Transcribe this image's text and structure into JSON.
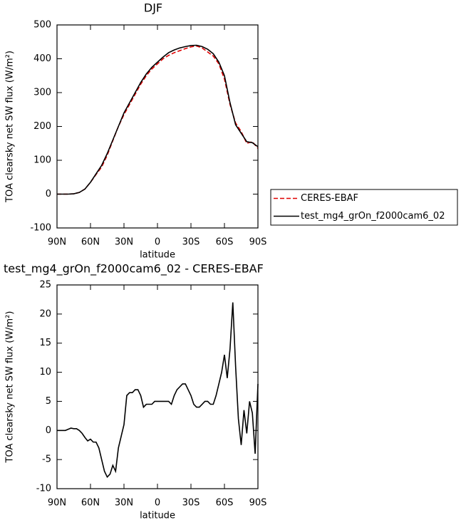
{
  "chart_data": [
    {
      "type": "line",
      "title": "DJF",
      "xlabel": "latitude",
      "ylabel": "TOA clearsky net SW flux (W/m²)",
      "x": [
        90,
        85,
        80,
        75,
        70,
        65,
        60,
        55,
        50,
        45,
        40,
        35,
        30,
        25,
        20,
        15,
        10,
        5,
        0,
        -5,
        -10,
        -15,
        -20,
        -25,
        -30,
        -35,
        -40,
        -45,
        -50,
        -55,
        -60,
        -65,
        -70,
        -75,
        -80,
        -85,
        -90
      ],
      "series": [
        {
          "name": "CERES-EBAF",
          "color": "#e00000",
          "dashed": true,
          "values": [
            0,
            0,
            0,
            1,
            5,
            15,
            35,
            58,
            80,
            115,
            158,
            200,
            235,
            265,
            295,
            325,
            350,
            370,
            385,
            400,
            410,
            418,
            424,
            430,
            435,
            438,
            432,
            420,
            408,
            385,
            340,
            265,
            210,
            185,
            150,
            155,
            135
          ]
        },
        {
          "name": "test_mg4_grOn_f2000cam6_02",
          "color": "#000000",
          "dashed": false,
          "values": [
            0,
            0,
            0,
            1,
            5,
            15,
            35,
            60,
            85,
            120,
            160,
            200,
            240,
            270,
            300,
            330,
            355,
            375,
            390,
            405,
            418,
            426,
            432,
            436,
            439,
            440,
            436,
            428,
            415,
            390,
            350,
            270,
            205,
            180,
            155,
            152,
            140
          ]
        }
      ],
      "xlim": [
        90,
        -90
      ],
      "xticks": [
        {
          "value": 90,
          "label": "90N"
        },
        {
          "value": 60,
          "label": "60N"
        },
        {
          "value": 30,
          "label": "30N"
        },
        0,
        {
          "value": -30,
          "label": "30S"
        },
        {
          "value": -60,
          "label": "60S"
        },
        {
          "value": -90,
          "label": "90S"
        }
      ],
      "ylim": [
        -100,
        500
      ],
      "yticks": [
        -100,
        0,
        100,
        200,
        300,
        400,
        500
      ],
      "legend": "outside-right"
    },
    {
      "type": "line",
      "title": "test_mg4_grOn_f2000cam6_02 - CERES-EBAF",
      "xlabel": "latitude",
      "ylabel": "TOA clearsky net SW flux (W/m²)",
      "x": [
        90,
        87.5,
        85,
        82.5,
        80,
        77.5,
        75,
        72.5,
        70,
        67.5,
        65,
        62.5,
        60,
        57.5,
        55,
        52.5,
        50,
        47.5,
        45,
        42.5,
        40,
        37.5,
        35,
        32.5,
        30,
        27.5,
        25,
        22.5,
        20,
        17.5,
        15,
        12.5,
        10,
        7.5,
        5,
        2.5,
        0,
        -2.5,
        -5,
        -7.5,
        -10,
        -12.5,
        -15,
        -17.5,
        -20,
        -22.5,
        -25,
        -27.5,
        -30,
        -32.5,
        -35,
        -37.5,
        -40,
        -42.5,
        -45,
        -47.5,
        -50,
        -52.5,
        -55,
        -57.5,
        -60,
        -62.5,
        -65,
        -67.5,
        -70,
        -72.5,
        -75,
        -77.5,
        -80,
        -82.5,
        -85,
        -87.5,
        -90
      ],
      "series": [
        {
          "name": null,
          "color": "#000000",
          "dashed": false,
          "values": [
            0,
            0,
            0,
            0,
            0.2,
            0.4,
            0.3,
            0.3,
            0,
            -0.5,
            -1.2,
            -1.8,
            -1.5,
            -2,
            -2,
            -3,
            -5,
            -7,
            -8,
            -7.5,
            -6,
            -7,
            -3,
            -1,
            1,
            6,
            6.5,
            6.5,
            7,
            7,
            6,
            4,
            4.5,
            4.5,
            4.5,
            5,
            5,
            5,
            5,
            5,
            5,
            4.5,
            6,
            7,
            7.5,
            8,
            8,
            7,
            6,
            4.5,
            4,
            4,
            4.5,
            5,
            5,
            4.5,
            4.5,
            6,
            8,
            10,
            13,
            9,
            14,
            22,
            11,
            2,
            -2.5,
            3.5,
            -0.5,
            5,
            3,
            -4,
            8
          ]
        }
      ],
      "xlim": [
        90,
        -90
      ],
      "xticks": [
        {
          "value": 90,
          "label": "90N"
        },
        {
          "value": 60,
          "label": "60N"
        },
        {
          "value": 30,
          "label": "30N"
        },
        0,
        {
          "value": -30,
          "label": "30S"
        },
        {
          "value": -60,
          "label": "60S"
        },
        {
          "value": -90,
          "label": "90S"
        }
      ],
      "ylim": [
        -10,
        25
      ],
      "yticks": [
        -10,
        -5,
        0,
        5,
        10,
        15,
        20,
        25
      ]
    }
  ]
}
